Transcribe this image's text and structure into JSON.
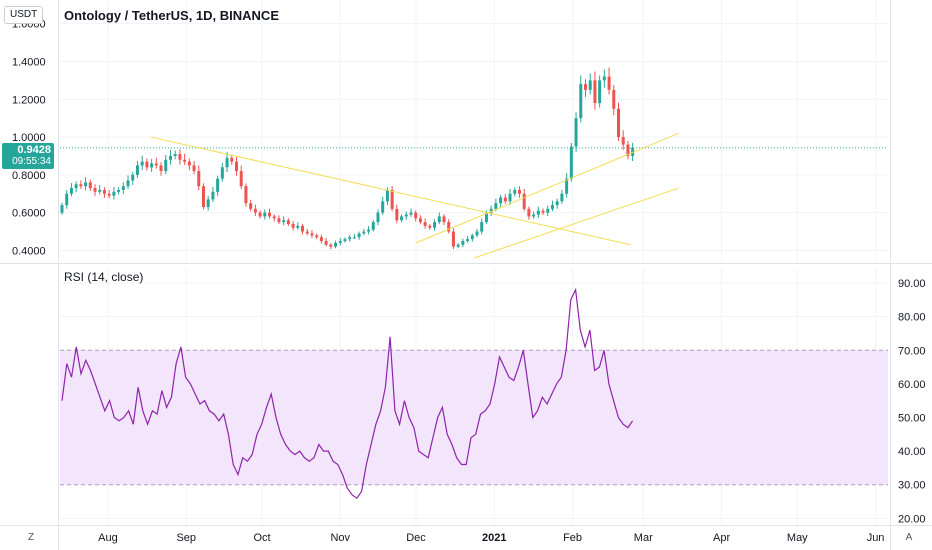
{
  "toolbar": {
    "currency": "USDT",
    "scale_z": "Z",
    "scale_a": "A"
  },
  "colors": {
    "up": "#26a69a",
    "down": "#ef5350",
    "trendline": "#f3dd52",
    "rsi": "#8e24aa",
    "rsi_band": "#f3e5fb",
    "rsi_band_border": "#b59cc0"
  },
  "chart_data": [
    {
      "type": "candlestick",
      "title": "Ontology / TetherUS, 1D, BINANCE",
      "yticks": [
        "0.4000",
        "0.6000",
        "0.8000",
        "1.0000",
        "1.2000",
        "1.4000",
        "1.6000"
      ],
      "ylim": [
        0.36,
        1.63
      ],
      "last_price": "0.9428",
      "countdown": "09:55:34",
      "x_axis_labels": [
        "Aug",
        "Sep",
        "Oct",
        "Nov",
        "Dec",
        "2021",
        "Feb",
        "Mar",
        "Apr",
        "May",
        "Jun"
      ],
      "closes": [
        0.64,
        0.7,
        0.73,
        0.75,
        0.74,
        0.76,
        0.73,
        0.71,
        0.72,
        0.7,
        0.69,
        0.71,
        0.72,
        0.74,
        0.77,
        0.8,
        0.85,
        0.87,
        0.84,
        0.86,
        0.85,
        0.82,
        0.88,
        0.9,
        0.91,
        0.88,
        0.87,
        0.85,
        0.82,
        0.74,
        0.63,
        0.67,
        0.71,
        0.78,
        0.84,
        0.89,
        0.87,
        0.82,
        0.74,
        0.65,
        0.62,
        0.6,
        0.58,
        0.6,
        0.58,
        0.57,
        0.55,
        0.56,
        0.54,
        0.52,
        0.53,
        0.5,
        0.49,
        0.48,
        0.47,
        0.45,
        0.43,
        0.42,
        0.44,
        0.45,
        0.46,
        0.47,
        0.47,
        0.49,
        0.5,
        0.51,
        0.55,
        0.6,
        0.66,
        0.72,
        0.62,
        0.56,
        0.58,
        0.59,
        0.6,
        0.57,
        0.55,
        0.53,
        0.52,
        0.55,
        0.58,
        0.55,
        0.5,
        0.42,
        0.43,
        0.45,
        0.46,
        0.48,
        0.5,
        0.55,
        0.6,
        0.62,
        0.65,
        0.68,
        0.66,
        0.7,
        0.72,
        0.7,
        0.62,
        0.58,
        0.59,
        0.61,
        0.6,
        0.62,
        0.64,
        0.66,
        0.7,
        0.78,
        0.95,
        1.1,
        1.28,
        1.25,
        1.3,
        1.18,
        1.3,
        1.32,
        1.25,
        1.15,
        1.0,
        0.96,
        0.9,
        0.9428
      ],
      "trendlines": [
        {
          "from": [
            "Aug 18",
            1.0
          ],
          "to": [
            "Feb 24",
            0.43
          ]
        },
        {
          "from": [
            "Dec 24",
            0.36
          ],
          "to": [
            "Mar 15",
            0.73
          ]
        },
        {
          "from": [
            "Dec 1",
            0.44
          ],
          "to": [
            "Mar 15",
            1.02
          ]
        }
      ]
    },
    {
      "type": "line",
      "title": "RSI (14, close)",
      "yticks": [
        "20.00",
        "30.00",
        "40.00",
        "50.00",
        "60.00",
        "70.00",
        "80.00",
        "90.00"
      ],
      "ylim": [
        19.5,
        91.5
      ],
      "band": [
        30,
        70
      ],
      "values": [
        55,
        66,
        62,
        71,
        63,
        67,
        64,
        60,
        56,
        52,
        55,
        50,
        49,
        50,
        52,
        48,
        59,
        52,
        48,
        52,
        51,
        58,
        53,
        56,
        66,
        71,
        62,
        60,
        57,
        54,
        55,
        52,
        51,
        49,
        51,
        45,
        36,
        33,
        38,
        37,
        39,
        45,
        48,
        53,
        57,
        50,
        45,
        42,
        40,
        39,
        40,
        38,
        37,
        38,
        42,
        40,
        40,
        37,
        36,
        33,
        29,
        27,
        26,
        28,
        36,
        42,
        48,
        52,
        59,
        74,
        52,
        48,
        55,
        50,
        47,
        40,
        39,
        38,
        44,
        50,
        53,
        45,
        42,
        38,
        36,
        36,
        44,
        45,
        51,
        52,
        54,
        60,
        68,
        65,
        62,
        61,
        65,
        70,
        60,
        50,
        52,
        56,
        54,
        57,
        60,
        62,
        70,
        85,
        88,
        76,
        71,
        76,
        64,
        65,
        70,
        60,
        55,
        50,
        48,
        47,
        49
      ]
    }
  ]
}
